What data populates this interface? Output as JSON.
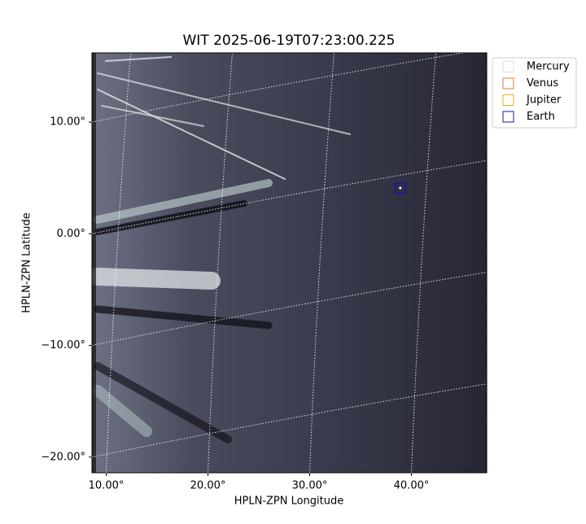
{
  "chart_data": {
    "type": "image",
    "title": "WIT 2025-06-19T07:23:00.225",
    "xlabel": "HPLN-ZPN Longitude",
    "ylabel": "HPLN-ZPN Latitude",
    "xlim": [
      8.6,
      47.4
    ],
    "ylim": [
      -21.4,
      16.2
    ],
    "xticks": [
      {
        "value": 10,
        "label": "10.00°"
      },
      {
        "value": 20,
        "label": "20.00°"
      },
      {
        "value": 30,
        "label": "30.00°"
      },
      {
        "value": 40,
        "label": "40.00°"
      }
    ],
    "yticks": [
      {
        "value": -20,
        "label": "−20.00°"
      },
      {
        "value": -10,
        "label": "−10.00°"
      },
      {
        "value": 0,
        "label": "0.00°"
      },
      {
        "value": 10,
        "label": "10.00°"
      }
    ],
    "grid": true,
    "legend": "upper right outside",
    "series": [
      {
        "name": "Mercury",
        "color": "#dddddd",
        "x": [],
        "y": []
      },
      {
        "name": "Venus",
        "color": "#e07b39",
        "x": [],
        "y": []
      },
      {
        "name": "Jupiter",
        "color": "#e8b020",
        "x": [],
        "y": []
      },
      {
        "name": "Earth",
        "color": "#1a1a9a",
        "x": [
          38.9
        ],
        "y": [
          4.1
        ]
      }
    ]
  }
}
